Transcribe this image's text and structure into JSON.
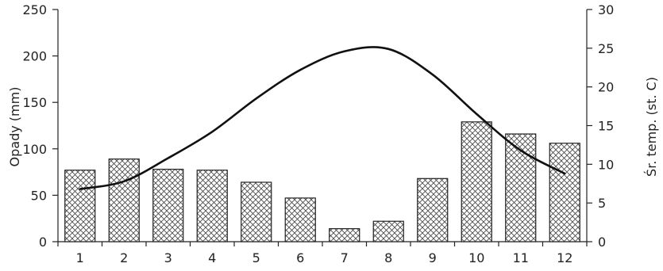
{
  "chart_data": {
    "type": "bar",
    "categories": [
      "1",
      "2",
      "3",
      "4",
      "5",
      "6",
      "7",
      "8",
      "9",
      "10",
      "11",
      "12"
    ],
    "series": [
      {
        "type": "bar",
        "axis": "left",
        "values": [
          77,
          89,
          78,
          77,
          64,
          47,
          14,
          22,
          68,
          129,
          116,
          106
        ]
      },
      {
        "type": "line",
        "axis": "right",
        "values": [
          6.8,
          7.8,
          10.8,
          14.2,
          18.5,
          22.2,
          24.6,
          24.9,
          21.6,
          16.5,
          11.8,
          8.8
        ]
      }
    ],
    "ylabel": "Opady (mm)",
    "y2label": "Śr. temp. (st. C)",
    "ylim": [
      0,
      250
    ],
    "y2lim": [
      0,
      30
    ],
    "yticks": [
      0,
      50,
      100,
      150,
      200,
      250
    ],
    "y2ticks": [
      0,
      5,
      10,
      15,
      20,
      25,
      30
    ],
    "grid": false,
    "colors": {
      "bar_fill": "hatched",
      "line": "#111111"
    }
  }
}
